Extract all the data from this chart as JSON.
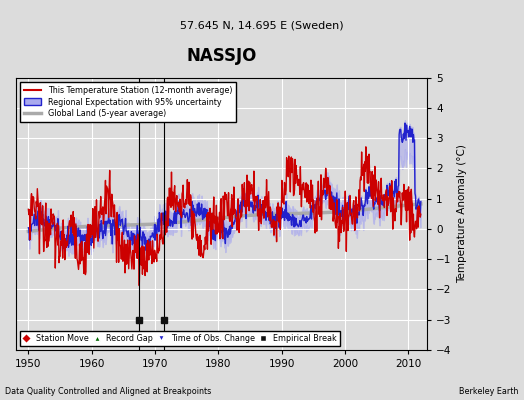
{
  "title": "NASSJO",
  "subtitle": "57.645 N, 14.695 E (Sweden)",
  "ylabel": "Temperature Anomaly (°C)",
  "xlabel_left": "Data Quality Controlled and Aligned at Breakpoints",
  "xlabel_right": "Berkeley Earth",
  "xlim": [
    1948,
    2013
  ],
  "ylim": [
    -4,
    5
  ],
  "yticks": [
    -4,
    -3,
    -2,
    -1,
    0,
    1,
    2,
    3,
    4,
    5
  ],
  "xticks": [
    1950,
    1960,
    1970,
    1980,
    1990,
    2000,
    2010
  ],
  "background_color": "#dcdcdc",
  "plot_bg_color": "#dcdcdc",
  "grid_color": "white",
  "empirical_breaks": [
    1967.5,
    1971.5
  ],
  "break_marker_y": -3.0,
  "station_color": "#cc0000",
  "regional_color": "#2222cc",
  "regional_fill": "#aaaaee",
  "global_color": "#aaaaaa",
  "global_lw": 2.5,
  "line_lw": 1.0
}
